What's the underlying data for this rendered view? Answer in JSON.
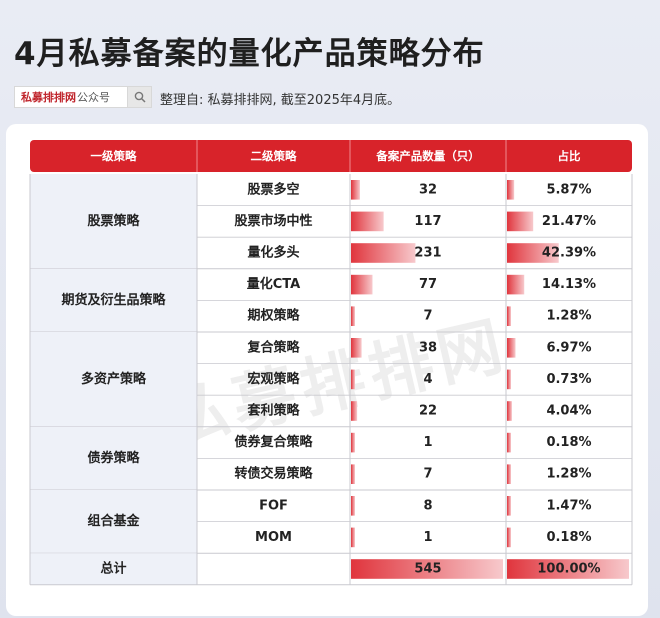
{
  "page": {
    "title": "4月私募备案的量化产品策略分布",
    "brand": "私募排排网",
    "brand_suffix": "公众号",
    "source": "整理自: 私募排排网, 截至2025年4月底。",
    "watermark": "私募排排网"
  },
  "colors": {
    "header_red": "#d8232a",
    "bar_red": "#e0353d",
    "bar_fade": "#f7c9cc",
    "group_bg": "#eef1f8",
    "border": "#c9c9cf"
  },
  "chart_data": {
    "type": "table",
    "columns": [
      "一级策略",
      "二级策略",
      "备案产品数量（只）",
      "占比"
    ],
    "groups": [
      {
        "name": "股票策略",
        "rows": [
          {
            "strategy": "股票多空",
            "count": 32,
            "share": "5.87%"
          },
          {
            "strategy": "股票市场中性",
            "count": 117,
            "share": "21.47%"
          },
          {
            "strategy": "量化多头",
            "count": 231,
            "share": "42.39%"
          }
        ]
      },
      {
        "name": "期货及衍生品策略",
        "rows": [
          {
            "strategy": "量化CTA",
            "count": 77,
            "share": "14.13%"
          },
          {
            "strategy": "期权策略",
            "count": 7,
            "share": "1.28%"
          }
        ]
      },
      {
        "name": "多资产策略",
        "rows": [
          {
            "strategy": "复合策略",
            "count": 38,
            "share": "6.97%"
          },
          {
            "strategy": "宏观策略",
            "count": 4,
            "share": "0.73%"
          },
          {
            "strategy": "套利策略",
            "count": 22,
            "share": "4.04%"
          }
        ]
      },
      {
        "name": "债券策略",
        "rows": [
          {
            "strategy": "债券复合策略",
            "count": 1,
            "share": "0.18%"
          },
          {
            "strategy": "转债交易策略",
            "count": 7,
            "share": "1.28%"
          }
        ]
      },
      {
        "name": "组合基金",
        "rows": [
          {
            "strategy": "FOF",
            "count": 8,
            "share": "1.47%"
          },
          {
            "strategy": "MOM",
            "count": 1,
            "share": "0.18%"
          }
        ]
      }
    ],
    "total": {
      "label": "总计",
      "count": 545,
      "share": "100.00%"
    }
  }
}
